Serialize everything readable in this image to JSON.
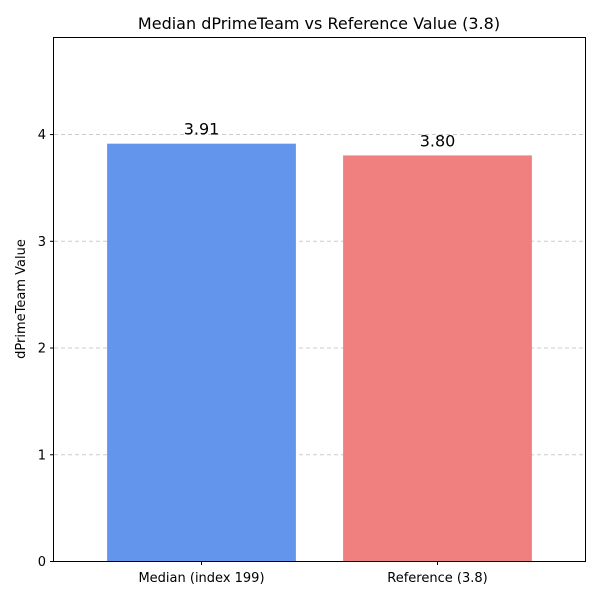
{
  "chart_data": {
    "type": "bar",
    "title": "Median dPrimeTeam vs Reference Value (3.8)",
    "xlabel": "",
    "ylabel": "dPrimeTeam Value",
    "categories": [
      "Median (index 199)",
      "Reference (3.8)"
    ],
    "values": [
      3.91,
      3.8
    ],
    "data_labels": [
      "3.91",
      "3.80"
    ],
    "colors": [
      "#6495ed",
      "#f08080"
    ],
    "ylim": [
      0,
      4.9
    ],
    "yticks": [
      0,
      1,
      2,
      3,
      4
    ],
    "ytick_labels": [
      "0",
      "1",
      "2",
      "3",
      "4"
    ],
    "grid": true
  }
}
